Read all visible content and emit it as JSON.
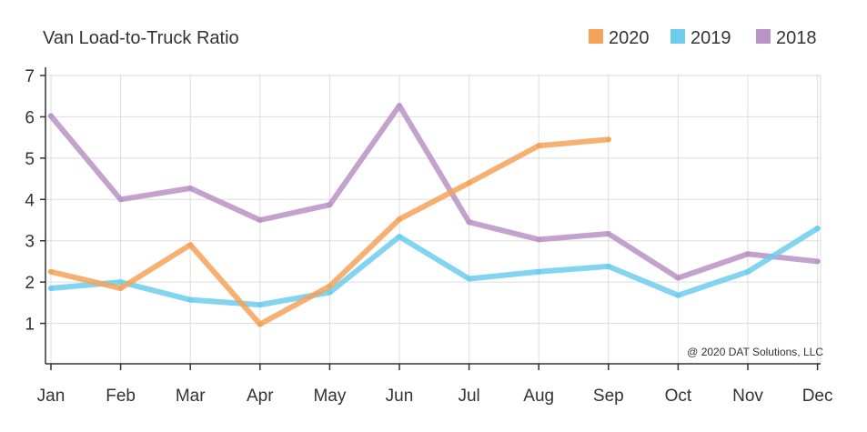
{
  "chart_data": {
    "type": "line",
    "title": "Van Load-to-Truck Ratio",
    "xlabel": "",
    "ylabel": "",
    "categories": [
      "Jan",
      "Feb",
      "Mar",
      "Apr",
      "May",
      "Jun",
      "Jul",
      "Aug",
      "Sep",
      "Oct",
      "Nov",
      "Dec"
    ],
    "ylim": [
      0,
      7
    ],
    "yticks": [
      1,
      2,
      3,
      4,
      5,
      6,
      7
    ],
    "grid": true,
    "legend_position": "top-right",
    "series": [
      {
        "name": "2020",
        "color": "#f4a259",
        "values": [
          2.25,
          1.85,
          2.9,
          0.98,
          1.9,
          3.52,
          4.4,
          5.3,
          5.45,
          null,
          null,
          null
        ]
      },
      {
        "name": "2019",
        "color": "#6ccdef",
        "values": [
          1.85,
          2.0,
          1.57,
          1.45,
          1.75,
          3.1,
          2.08,
          2.25,
          2.38,
          1.68,
          2.25,
          3.3
        ]
      },
      {
        "name": "2018",
        "color": "#b993c6",
        "values": [
          6.02,
          4.0,
          4.27,
          3.5,
          3.87,
          6.27,
          3.45,
          3.03,
          3.17,
          2.1,
          2.68,
          2.5
        ]
      }
    ],
    "legend_order": [
      "2020",
      "2019",
      "2018"
    ],
    "draw_order": [
      "2018",
      "2019",
      "2020"
    ],
    "annotation": "@ 2020 DAT Solutions, LLC"
  }
}
